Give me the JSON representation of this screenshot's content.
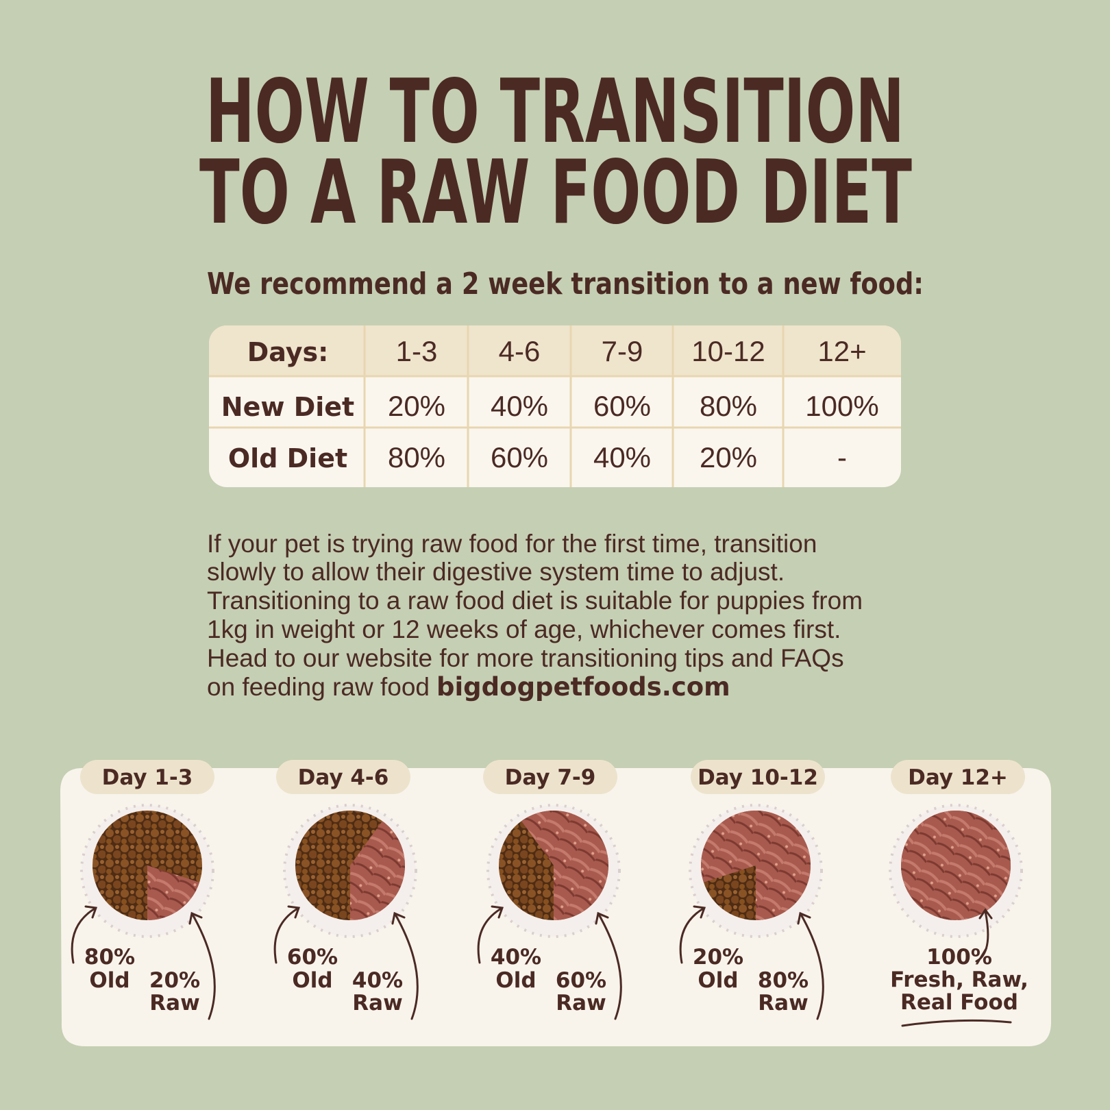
{
  "title": {
    "lines": [
      "HOW TO TRANSITION",
      "TO A RAW FOOD DIET"
    ]
  },
  "subtitle": "We recommend a 2 week transition to a new food:",
  "table": {
    "header": [
      "Days:",
      "1-3",
      "4-6",
      "7-9",
      "10-12",
      "12+"
    ],
    "rows": [
      [
        "New Diet",
        "20%",
        "40%",
        "60%",
        "80%",
        "100%"
      ],
      [
        "Old Diet",
        "80%",
        "60%",
        "40%",
        "20%",
        "-"
      ]
    ]
  },
  "paragraph": {
    "lines": [
      "If your pet is trying raw food for the first time, transition",
      "slowly to allow their digestive system time to adjust.",
      "Transitioning to a raw food diet is suitable for puppies from",
      "1kg in weight or 12 weeks of age, whichever comes first.",
      "Head to our website for more transitioning tips and  FAQs"
    ],
    "last_line": "on feeding raw food",
    "link": "bigdogpetfoods.com"
  },
  "stages": [
    {
      "day": "Day 1-3",
      "old": [
        "80%",
        "Old"
      ],
      "raw": [
        "20%",
        "Raw"
      ]
    },
    {
      "day": "Day 4-6",
      "old": [
        "60%",
        "Old"
      ],
      "raw": [
        "40%",
        "Raw"
      ]
    },
    {
      "day": "Day 7-9",
      "old": [
        "40%",
        "Old"
      ],
      "raw": [
        "60%",
        "Raw"
      ]
    },
    {
      "day": "Day 10-12",
      "old": [
        "20%",
        "Old"
      ],
      "raw": [
        "80%",
        "Raw"
      ]
    },
    {
      "day": "Day 12+",
      "final": [
        "100%",
        "Fresh, Raw,",
        "Real Food"
      ]
    }
  ]
}
